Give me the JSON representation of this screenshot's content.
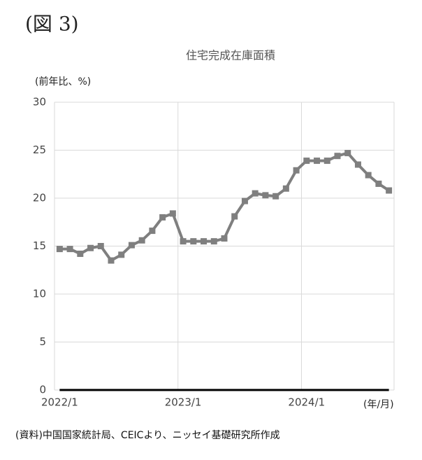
{
  "figure_label": "(図 3)",
  "source": "(資料)中国国家統計局、CEICより、ニッセイ基礎研究所作成",
  "chart_data": {
    "type": "line",
    "title": "住宅完成在庫面積",
    "ylabel": "(前年比、%)",
    "xlabel": "(年/月)",
    "categories": [
      "2022/1",
      null,
      null,
      null,
      null,
      null,
      null,
      null,
      null,
      null,
      null,
      null,
      "2023/1",
      null,
      null,
      null,
      null,
      null,
      null,
      null,
      null,
      null,
      null,
      null,
      "2024/1",
      null,
      null,
      null,
      null,
      null,
      null,
      null,
      null
    ],
    "series": [
      {
        "name": "住宅完成在庫面積",
        "color": "#7f7f7f",
        "values": [
          14.7,
          14.7,
          14.2,
          14.8,
          15.0,
          13.5,
          14.1,
          15.1,
          15.6,
          16.6,
          18.0,
          18.4,
          15.5,
          15.5,
          15.5,
          15.5,
          15.8,
          18.1,
          19.7,
          20.5,
          20.3,
          20.2,
          21.0,
          22.9,
          23.9,
          23.9,
          23.9,
          24.4,
          24.7,
          23.5,
          22.4,
          21.5,
          20.8
        ]
      }
    ],
    "ylim": [
      0,
      30
    ],
    "yticks": [
      0,
      5,
      10,
      15,
      20,
      25,
      30
    ],
    "grid": true
  }
}
